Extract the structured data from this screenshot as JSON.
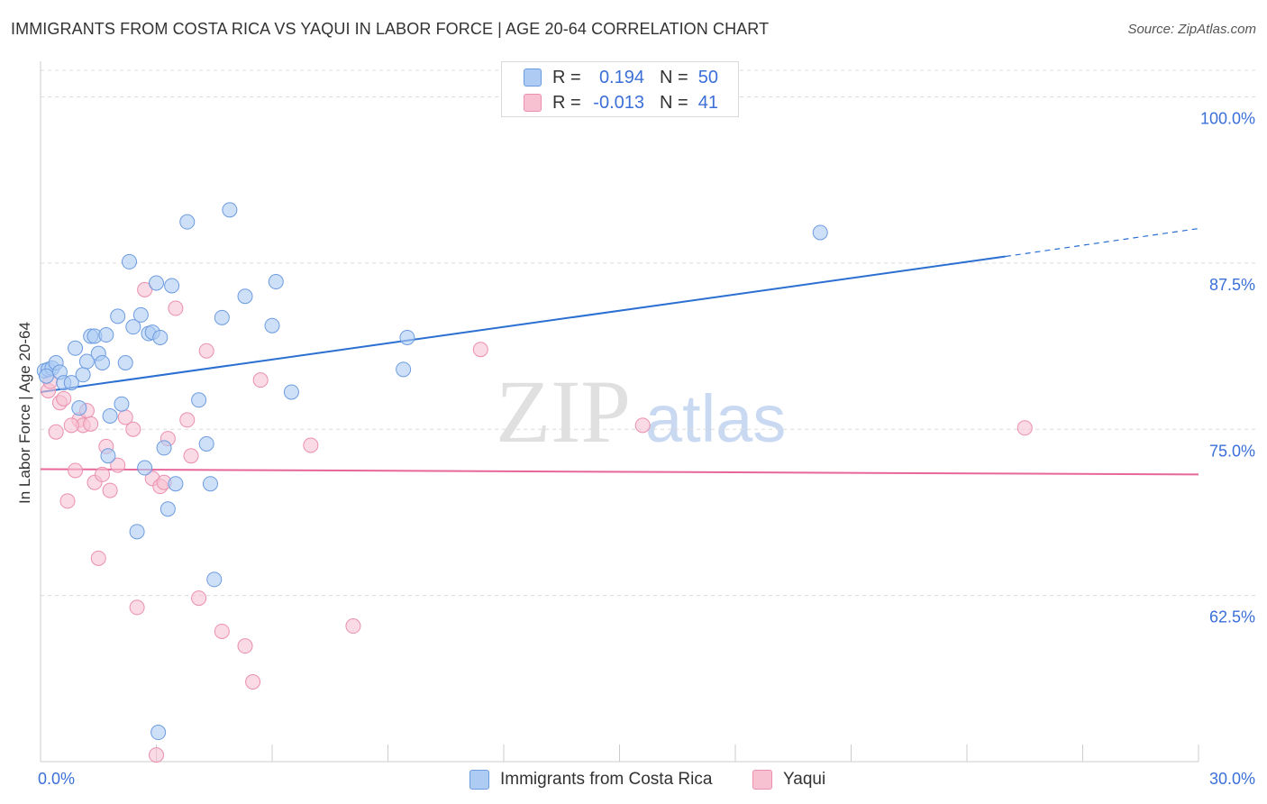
{
  "header": {
    "title": "IMMIGRANTS FROM COSTA RICA VS YAQUI IN LABOR FORCE | AGE 20-64 CORRELATION CHART",
    "source": "Source: ZipAtlas.com"
  },
  "watermark": {
    "zip": "ZIP",
    "atlas": "atlas"
  },
  "legend_stats": {
    "series1": {
      "r_label": "R =",
      "r_value": "0.194",
      "n_label": "N =",
      "n_value": "50"
    },
    "series2": {
      "r_label": "R =",
      "r_value": "-0.013",
      "n_label": "N =",
      "n_value": "41"
    }
  },
  "colors": {
    "blue_fill": "#aecbf3",
    "blue_stroke": "#6c9be0",
    "blue_line": "#2a6fd1",
    "pink_fill": "#f7c1d2",
    "pink_stroke": "#eb8fae",
    "pink_line": "#e8679a",
    "grid": "#dcdcdc",
    "tick_text": "#3b6fd8"
  },
  "chart_data": {
    "type": "scatter",
    "title": "IMMIGRANTS FROM COSTA RICA VS YAQUI IN LABOR FORCE | AGE 20-64 CORRELATION CHART",
    "xlabel": "",
    "ylabel": "In Labor Force | Age 20-64",
    "xlim": [
      0,
      30
    ],
    "ylim": [
      50,
      102
    ],
    "x_tick_labels": [
      {
        "value": 0,
        "label": "0.0%"
      },
      {
        "value": 30,
        "label": "30.0%"
      }
    ],
    "y_tick_labels": [
      {
        "value": 100,
        "label": "100.0%"
      },
      {
        "value": 87.5,
        "label": "87.5%"
      },
      {
        "value": 75,
        "label": "75.0%"
      },
      {
        "value": 62.5,
        "label": "62.5%"
      }
    ],
    "series": [
      {
        "name": "Immigrants from Costa Rica",
        "color": "#aecbf3",
        "points": [
          [
            0.1,
            79.4
          ],
          [
            0.2,
            79.5
          ],
          [
            0.3,
            79.6
          ],
          [
            0.4,
            80.0
          ],
          [
            0.5,
            79.3
          ],
          [
            0.6,
            78.5
          ],
          [
            0.8,
            78.5
          ],
          [
            0.9,
            81.1
          ],
          [
            1.0,
            76.6
          ],
          [
            1.1,
            79.1
          ],
          [
            1.2,
            80.1
          ],
          [
            1.3,
            82.0
          ],
          [
            1.4,
            82.0
          ],
          [
            1.5,
            80.7
          ],
          [
            1.6,
            80.0
          ],
          [
            1.7,
            82.1
          ],
          [
            1.8,
            76.0
          ],
          [
            2.0,
            83.5
          ],
          [
            2.1,
            76.9
          ],
          [
            2.2,
            80.0
          ],
          [
            2.3,
            87.6
          ],
          [
            2.4,
            82.7
          ],
          [
            2.5,
            67.3
          ],
          [
            2.6,
            83.6
          ],
          [
            2.7,
            72.1
          ],
          [
            2.8,
            82.2
          ],
          [
            2.9,
            82.3
          ],
          [
            3.0,
            86.0
          ],
          [
            3.05,
            52.2
          ],
          [
            3.1,
            81.9
          ],
          [
            3.2,
            73.6
          ],
          [
            3.3,
            69.0
          ],
          [
            3.4,
            85.8
          ],
          [
            3.5,
            70.9
          ],
          [
            3.8,
            90.6
          ],
          [
            4.1,
            77.2
          ],
          [
            4.3,
            73.9
          ],
          [
            4.4,
            70.9
          ],
          [
            4.5,
            63.7
          ],
          [
            4.7,
            83.4
          ],
          [
            4.9,
            91.5
          ],
          [
            5.3,
            85.0
          ],
          [
            6.0,
            82.8
          ],
          [
            6.1,
            86.1
          ],
          [
            6.5,
            77.8
          ],
          [
            9.4,
            79.5
          ],
          [
            9.5,
            81.9
          ],
          [
            20.2,
            89.8
          ],
          [
            0.15,
            79.0
          ],
          [
            1.75,
            73.0
          ]
        ]
      },
      {
        "name": "Yaqui",
        "color": "#f7c1d2",
        "points": [
          [
            0.2,
            77.9
          ],
          [
            0.4,
            74.8
          ],
          [
            0.5,
            77.0
          ],
          [
            0.6,
            77.3
          ],
          [
            0.7,
            69.6
          ],
          [
            0.9,
            71.9
          ],
          [
            1.0,
            75.7
          ],
          [
            1.1,
            75.3
          ],
          [
            1.2,
            76.4
          ],
          [
            1.3,
            75.4
          ],
          [
            1.4,
            71.0
          ],
          [
            1.5,
            65.3
          ],
          [
            1.6,
            71.6
          ],
          [
            1.7,
            73.7
          ],
          [
            1.8,
            70.4
          ],
          [
            2.0,
            72.3
          ],
          [
            2.2,
            75.9
          ],
          [
            2.4,
            75.0
          ],
          [
            2.5,
            61.6
          ],
          [
            2.7,
            85.5
          ],
          [
            2.9,
            71.3
          ],
          [
            3.0,
            50.5
          ],
          [
            3.1,
            70.7
          ],
          [
            3.3,
            74.3
          ],
          [
            3.5,
            84.1
          ],
          [
            3.8,
            75.7
          ],
          [
            3.9,
            73.0
          ],
          [
            4.1,
            62.3
          ],
          [
            4.3,
            80.9
          ],
          [
            4.7,
            59.8
          ],
          [
            5.3,
            58.7
          ],
          [
            5.5,
            56.0
          ],
          [
            5.7,
            78.7
          ],
          [
            7.0,
            73.8
          ],
          [
            8.1,
            60.2
          ],
          [
            11.4,
            81.0
          ],
          [
            15.6,
            75.3
          ],
          [
            25.5,
            75.1
          ],
          [
            0.25,
            78.6
          ],
          [
            0.8,
            75.3
          ],
          [
            3.2,
            71.0
          ]
        ]
      }
    ],
    "trend_lines": [
      {
        "series": "Immigrants from Costa Rica",
        "solid": [
          [
            0,
            77.8
          ],
          [
            25.0,
            88.0
          ]
        ],
        "dashed": [
          [
            25.0,
            88.0
          ],
          [
            30,
            90.1
          ]
        ]
      },
      {
        "series": "Yaqui",
        "solid": [
          [
            0,
            72.0
          ],
          [
            30,
            71.6
          ]
        ]
      }
    ]
  }
}
